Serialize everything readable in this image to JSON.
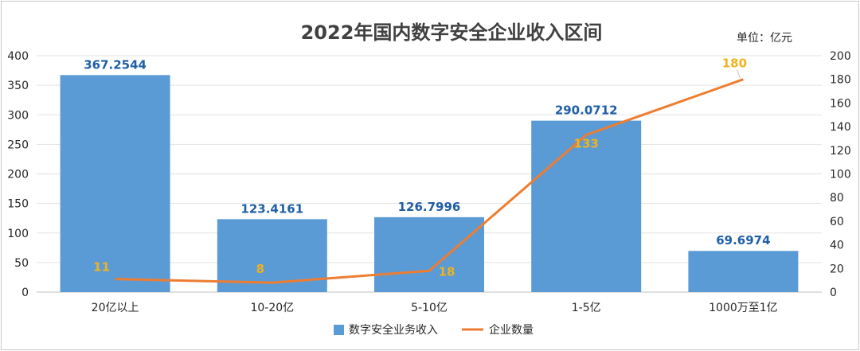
{
  "chart_data": {
    "type": "bar",
    "title": "2022年国内数字安全企业收入区间",
    "unit_label": "单位：亿元",
    "categories": [
      "20亿以上",
      "10-20亿",
      "5-10亿",
      "1-5亿",
      "1000万至1亿"
    ],
    "y_left": {
      "min": 0,
      "max": 400,
      "step": 50
    },
    "y_right": {
      "min": 0,
      "max": 200,
      "step": 20
    },
    "grid": true,
    "legend_position": "bottom",
    "series": [
      {
        "name": "数字安全业务收入",
        "type": "bar",
        "axis": "left",
        "color": "#5b9bd5",
        "label_color": "#1f5fa6",
        "values": [
          367.2544,
          123.4161,
          126.7996,
          290.0712,
          69.6974
        ],
        "labels": [
          "367.2544",
          "123.4161",
          "126.7996",
          "290.0712",
          "69.6974"
        ]
      },
      {
        "name": "企业数量",
        "type": "line",
        "axis": "right",
        "color": "#ed7d31",
        "label_color": "#f0b21d",
        "values": [
          11,
          8,
          18,
          133,
          180
        ],
        "labels": [
          "11",
          "8",
          "18",
          "133",
          "180"
        ]
      }
    ]
  }
}
